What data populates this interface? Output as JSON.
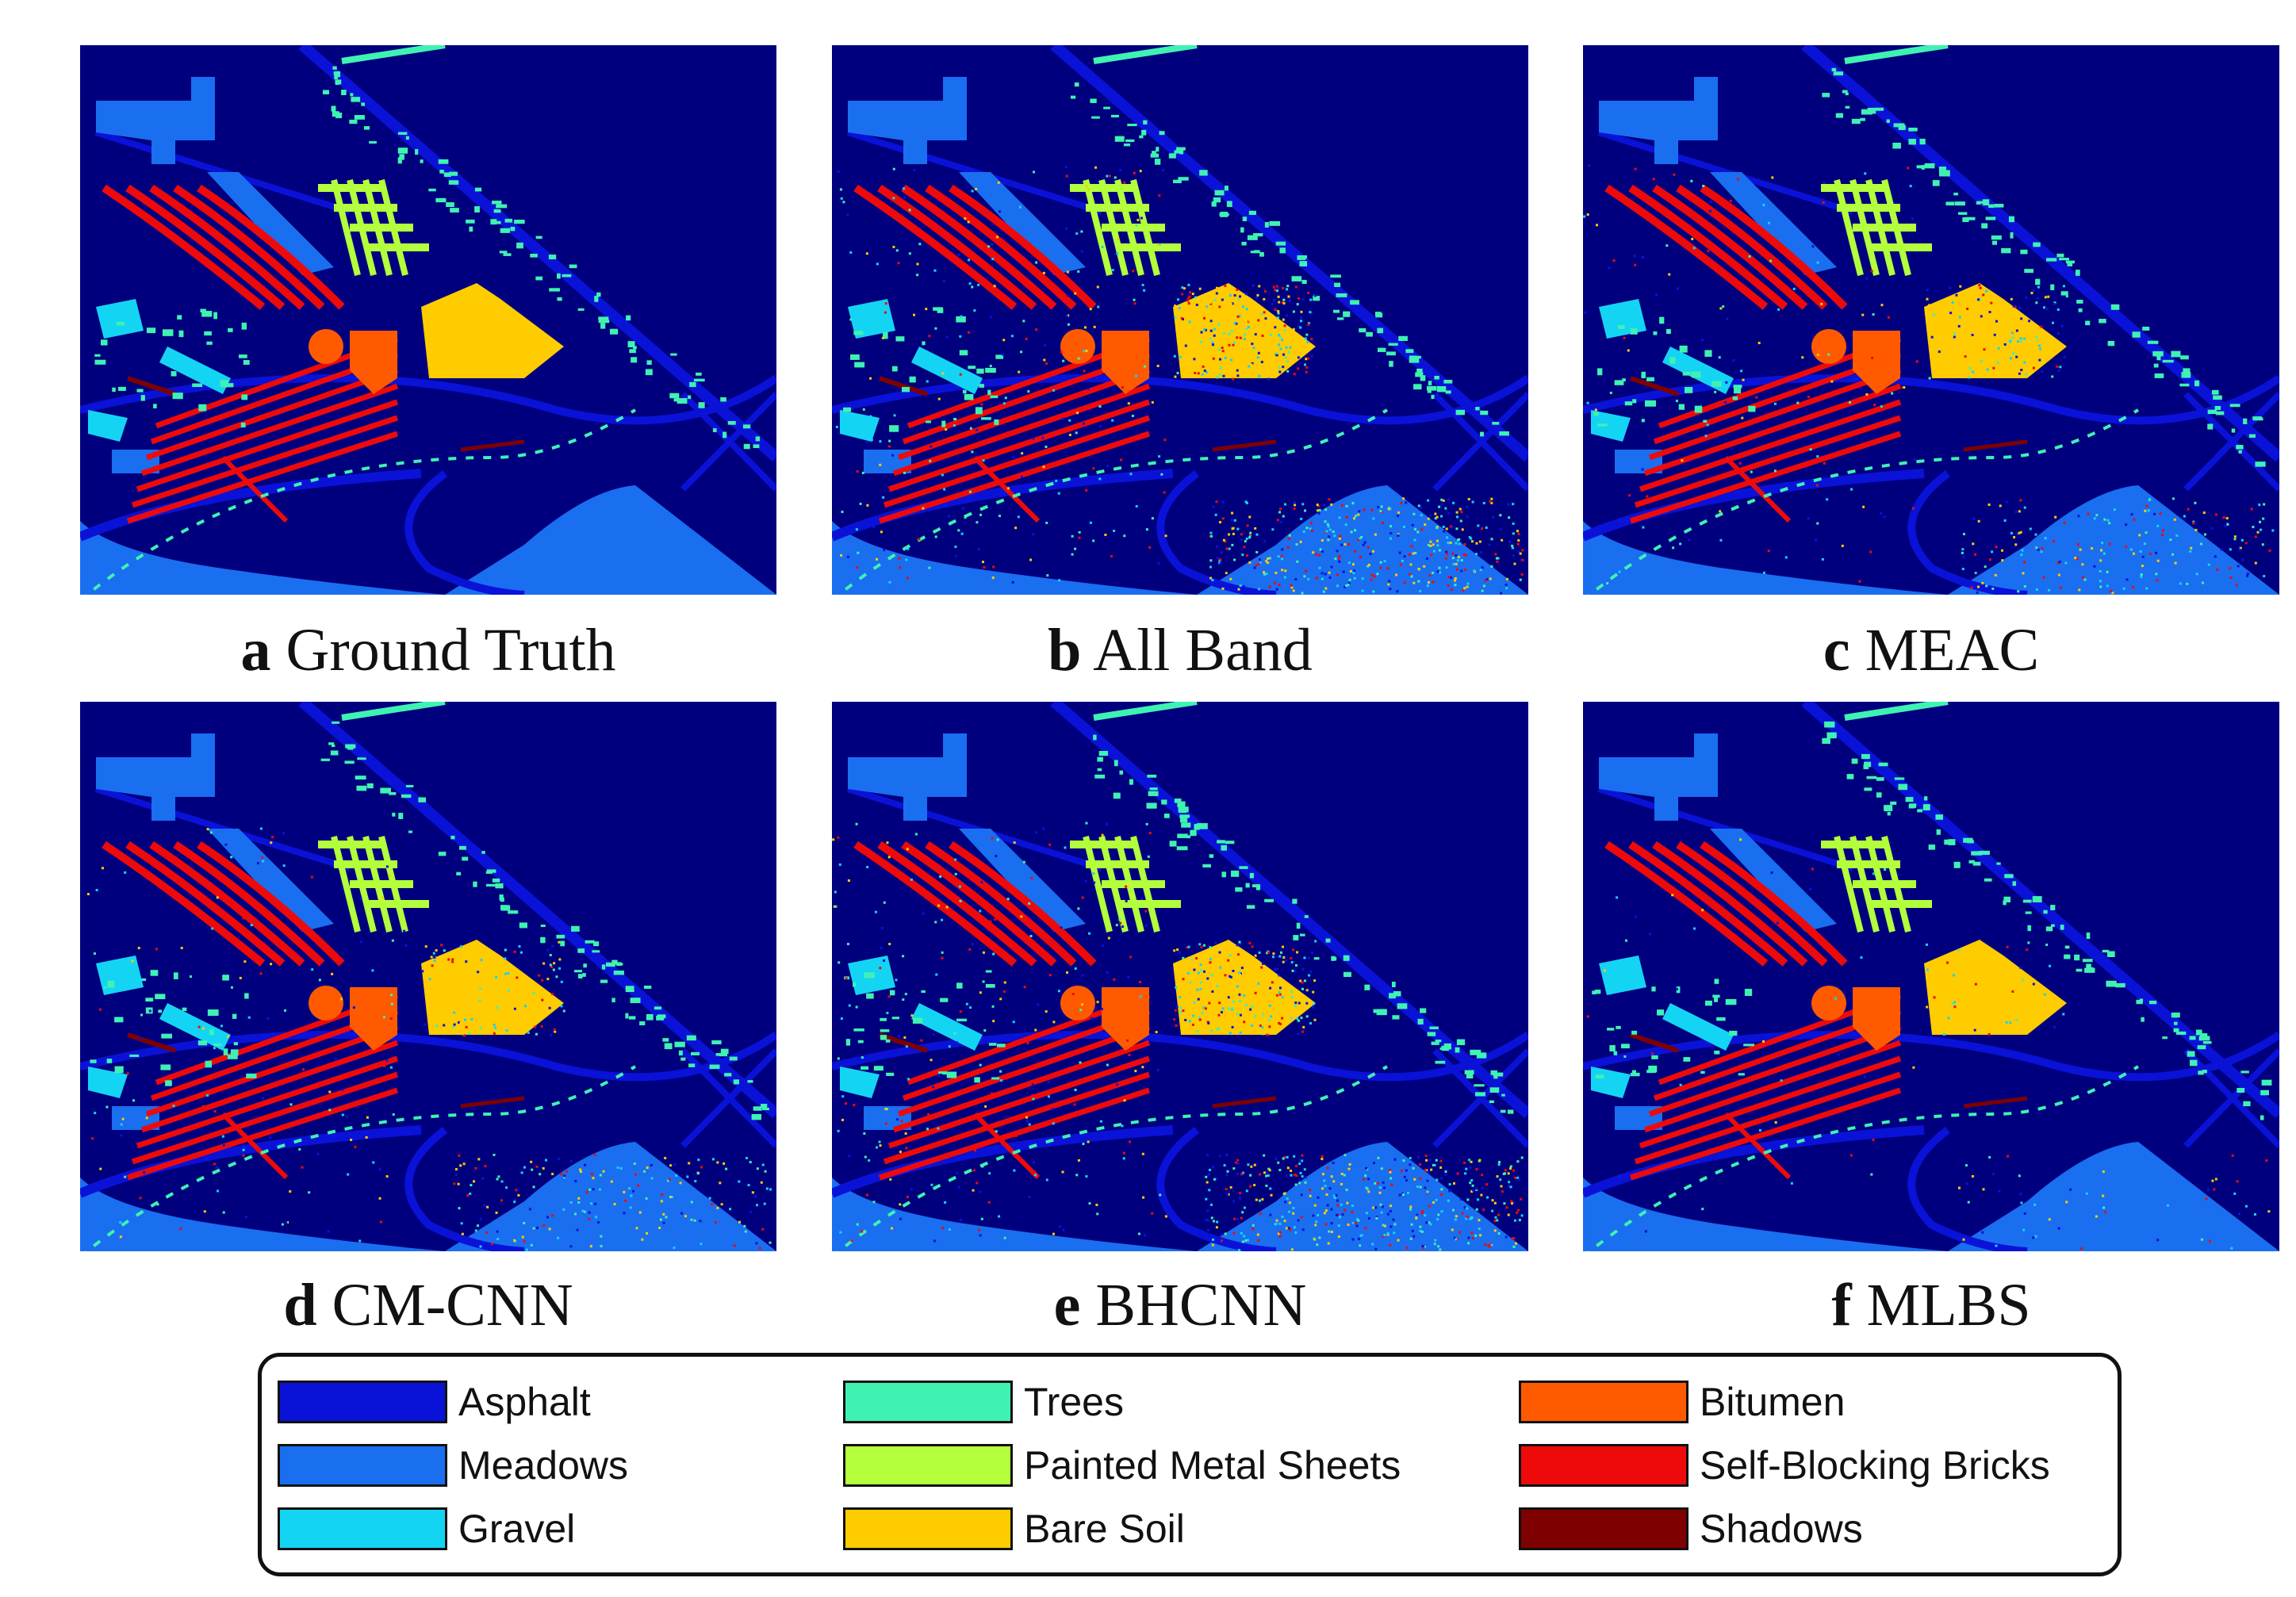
{
  "panels": [
    {
      "letter": "a",
      "name": "Ground Truth",
      "noise": "none"
    },
    {
      "letter": "b",
      "name": "All Band",
      "noise": "heavy"
    },
    {
      "letter": "c",
      "name": "MEAC",
      "noise": "medium"
    },
    {
      "letter": "d",
      "name": "CM-CNN",
      "noise": "medium"
    },
    {
      "letter": "e",
      "name": "BHCNN",
      "noise": "heavy"
    },
    {
      "letter": "f",
      "name": "MLBS",
      "noise": "light"
    }
  ],
  "legend": [
    {
      "label": "Asphalt",
      "color": "#0a12d8"
    },
    {
      "label": "Trees",
      "color": "#3ff2b2"
    },
    {
      "label": "Bitumen",
      "color": "#ff5a00"
    },
    {
      "label": "Meadows",
      "color": "#1a6ef0"
    },
    {
      "label": "Painted Metal Sheets",
      "color": "#b4ff3c"
    },
    {
      "label": "Self-Blocking Bricks",
      "color": "#ee0a0a"
    },
    {
      "label": "Gravel",
      "color": "#14d4f4"
    },
    {
      "label": "Bare Soil",
      "color": "#ffcc00"
    },
    {
      "label": "Shadows",
      "color": "#7f0000"
    }
  ],
  "background_color": "#00007f"
}
